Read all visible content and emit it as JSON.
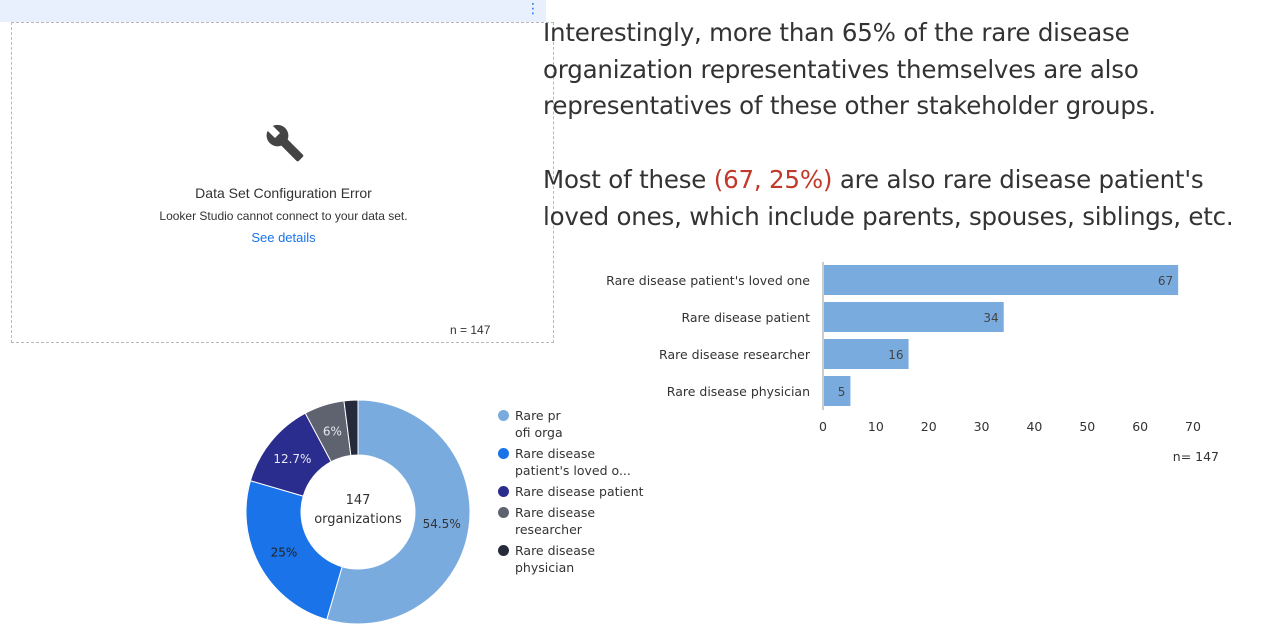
{
  "error_panel": {
    "title": "Data Set Configuration Error",
    "message": "Looker Studio cannot connect to your data set.",
    "link": "See details",
    "n_label": "n = 147",
    "menu_icon": "kebab-menu-icon",
    "icon": "wrench-icon"
  },
  "text": {
    "para1": "Interestingly, more than 65% of the rare disease organization representatives themselves are also representatives of these other stakeholder groups.",
    "para2_before": "Most of these ",
    "para2_highlight": "(67, 25%)",
    "para2_after": " are also rare disease patient's loved ones, which include parents, spouses, siblings, etc.",
    "highlight_color": "#c0392b"
  },
  "chart_data": [
    {
      "type": "bar",
      "orientation": "horizontal",
      "categories": [
        "Rare disease patient's loved one",
        "Rare disease patient",
        "Rare disease researcher",
        "Rare disease physician"
      ],
      "values": [
        67,
        34,
        16,
        5
      ],
      "data_labels": [
        "67",
        "34",
        "16",
        "5"
      ],
      "xlim": [
        0,
        70
      ],
      "xticks": [
        0,
        10,
        20,
        30,
        40,
        50,
        60,
        70
      ],
      "bar_color": "#7aabde",
      "note": "n= 147",
      "title": "",
      "xlabel": "",
      "ylabel": "",
      "grid": false
    },
    {
      "type": "pie",
      "donut": true,
      "center_label_line1": "147",
      "center_label_line2": "organizations",
      "slices": [
        {
          "name": "Rare profi orga",
          "legend_label": "Rare profi orga",
          "value": 54.5,
          "label": "54.5%",
          "color": "#7aabde"
        },
        {
          "name": "Rare disease patient's loved one",
          "legend_label": "Rare disease patient's loved o...",
          "value": 25,
          "label": "25%",
          "color": "#1a73e8"
        },
        {
          "name": "Rare disease patient",
          "legend_label": "Rare disease patient",
          "value": 12.7,
          "label": "12.7%",
          "color": "#2b2d8e"
        },
        {
          "name": "Rare disease researcher",
          "legend_label": "Rare disease researcher",
          "value": 5.8,
          "label": "6%",
          "color": "#5f6370"
        },
        {
          "name": "Rare disease physician",
          "legend_label": "Rare disease physician",
          "value": 2.0,
          "label": "",
          "color": "#262a3a"
        }
      ],
      "legend_position": "right"
    }
  ]
}
